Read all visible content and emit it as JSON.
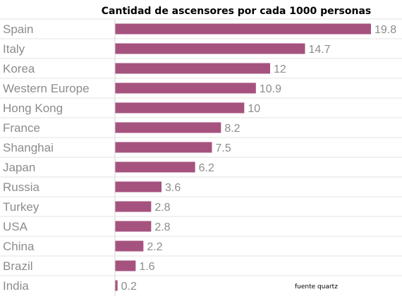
{
  "chart_data": {
    "type": "bar",
    "orientation": "horizontal",
    "title": "Cantidad de ascensores por cada 1000 personas",
    "categories": [
      "Spain",
      "Italy",
      "Korea",
      "Western Europe",
      "Hong Kong",
      "France",
      "Shanghai",
      "Japan",
      "Russia",
      "Turkey",
      "USA",
      "China",
      "Brazil",
      "India"
    ],
    "values": [
      19.8,
      14.7,
      12,
      10.9,
      10,
      8.2,
      7.5,
      6.2,
      3.6,
      2.8,
      2.8,
      2.2,
      1.6,
      0.2
    ],
    "value_labels": [
      "19.8",
      "14.7",
      "12",
      "10.9",
      "10",
      "8.2",
      "7.5",
      "6.2",
      "3.6",
      "2.8",
      "2.8",
      "2.2",
      "1.6",
      "0.2"
    ],
    "bar_color": "#a6527f",
    "gridline_color": "#e3e3e3",
    "label_color": "#8c8c8c",
    "xlim": [
      0,
      19.8
    ],
    "grid": true,
    "legend": "none",
    "source": "fuente quartz"
  }
}
